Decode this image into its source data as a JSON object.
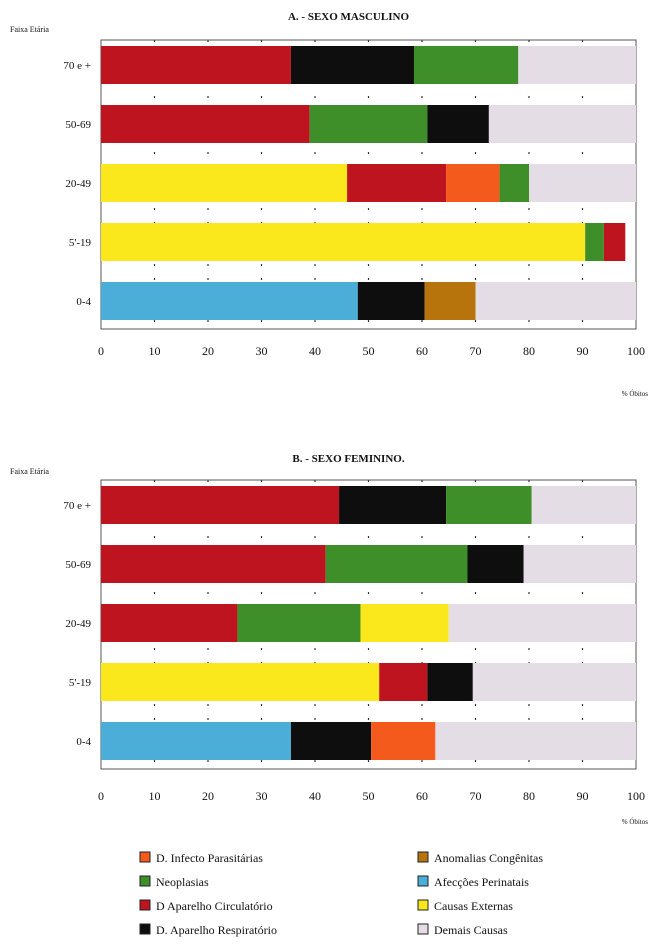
{
  "chart_data": [
    {
      "type": "bar",
      "orientation": "horizontal",
      "stacked": true,
      "title": "A. - SEXO MASCULINO",
      "ylabel": "Faixa Etária",
      "xlabel": "% Óbitos",
      "xlim": [
        0,
        100
      ],
      "xticks": [
        0,
        10,
        20,
        30,
        40,
        50,
        60,
        70,
        80,
        90,
        100
      ],
      "grid": true,
      "categories": [
        "70 e +",
        "50-69",
        "20-49",
        "5'-19",
        "0-4"
      ],
      "bars": [
        {
          "category": "70 e +",
          "segments": [
            {
              "series": "D Aparelho Circulatório",
              "value": 35.5
            },
            {
              "series": "D. Aparelho Respiratório",
              "value": 23
            },
            {
              "series": "Neoplasias",
              "value": 19.5
            },
            {
              "series": "Demais Causas",
              "value": 22
            }
          ]
        },
        {
          "category": "50-69",
          "segments": [
            {
              "series": "D Aparelho Circulatório",
              "value": 39
            },
            {
              "series": "Neoplasias",
              "value": 22
            },
            {
              "series": "D. Aparelho Respiratório",
              "value": 11.5
            },
            {
              "series": "Demais Causas",
              "value": 27.5
            }
          ]
        },
        {
          "category": "20-49",
          "segments": [
            {
              "series": "Causas Externas",
              "value": 46
            },
            {
              "series": "D Aparelho Circulatório",
              "value": 18.5
            },
            {
              "series": "D. Infecto Parasitárias",
              "value": 10
            },
            {
              "series": "Neoplasias",
              "value": 5.5
            },
            {
              "series": "Demais Causas",
              "value": 20
            }
          ]
        },
        {
          "category": "5'-19",
          "segments": [
            {
              "series": "Causas Externas",
              "value": 90.5
            },
            {
              "series": "Neoplasias",
              "value": 3.5
            },
            {
              "series": "D Aparelho Circulatório",
              "value": 4
            }
          ]
        },
        {
          "category": "0-4",
          "segments": [
            {
              "series": "Afecções Perinatais",
              "value": 48
            },
            {
              "series": "D. Aparelho Respiratório",
              "value": 12.5
            },
            {
              "series": "Anomalias Congênitas",
              "value": 9.5
            },
            {
              "series": "Demais Causas",
              "value": 30
            }
          ]
        }
      ]
    },
    {
      "type": "bar",
      "orientation": "horizontal",
      "stacked": true,
      "title": "B. - SEXO FEMININO.",
      "ylabel": "Faixa Etária",
      "xlabel": "% Óbitos",
      "xlim": [
        0,
        100
      ],
      "xticks": [
        0,
        10,
        20,
        30,
        40,
        50,
        60,
        70,
        80,
        90,
        100
      ],
      "grid": true,
      "categories": [
        "70 e +",
        "50-69",
        "20-49",
        "5'-19",
        "0-4"
      ],
      "bars": [
        {
          "category": "70 e +",
          "segments": [
            {
              "series": "D Aparelho Circulatório",
              "value": 44.5
            },
            {
              "series": "D. Aparelho Respiratório",
              "value": 20
            },
            {
              "series": "Neoplasias",
              "value": 16
            },
            {
              "series": "Demais Causas",
              "value": 19.5
            }
          ]
        },
        {
          "category": "50-69",
          "segments": [
            {
              "series": "D Aparelho Circulatório",
              "value": 42
            },
            {
              "series": "Neoplasias",
              "value": 26.5
            },
            {
              "series": "D. Aparelho Respiratório",
              "value": 10.5
            },
            {
              "series": "Demais Causas",
              "value": 21
            }
          ]
        },
        {
          "category": "20-49",
          "segments": [
            {
              "series": "D Aparelho Circulatório",
              "value": 25.5
            },
            {
              "series": "Neoplasias",
              "value": 23
            },
            {
              "series": "Causas Externas",
              "value": 16.5
            },
            {
              "series": "Demais Causas",
              "value": 35
            }
          ]
        },
        {
          "category": "5'-19",
          "segments": [
            {
              "series": "Causas Externas",
              "value": 52
            },
            {
              "series": "D Aparelho Circulatório",
              "value": 9
            },
            {
              "series": "D. Aparelho Respiratório",
              "value": 8.5
            },
            {
              "series": "Demais Causas",
              "value": 30.5
            }
          ]
        },
        {
          "category": "0-4",
          "segments": [
            {
              "series": "Afecções Perinatais",
              "value": 35.5
            },
            {
              "series": "D. Aparelho Respiratório",
              "value": 15
            },
            {
              "series": "D. Infecto Parasitárias",
              "value": 12
            },
            {
              "series": "Demais Causas",
              "value": 37.5
            }
          ]
        }
      ]
    }
  ],
  "legend": {
    "placement": "bottom",
    "items": [
      {
        "label": "D. Infecto Parasitárias",
        "color": "#f45a1b"
      },
      {
        "label": "Anomalias Congênitas",
        "color": "#b8740c"
      },
      {
        "label": "Neoplasias",
        "color": "#3e8e2a"
      },
      {
        "label": "Afecções Perinatais",
        "color": "#4aaed8"
      },
      {
        "label": "D Aparelho Circulatório",
        "color": "#be1420"
      },
      {
        "label": "Causas Externas",
        "color": "#fbe81c"
      },
      {
        "label": "D. Aparelho Respiratório",
        "color": "#0e0e0e"
      },
      {
        "label": "Demais Causas",
        "color": "#e4dde6"
      }
    ]
  }
}
